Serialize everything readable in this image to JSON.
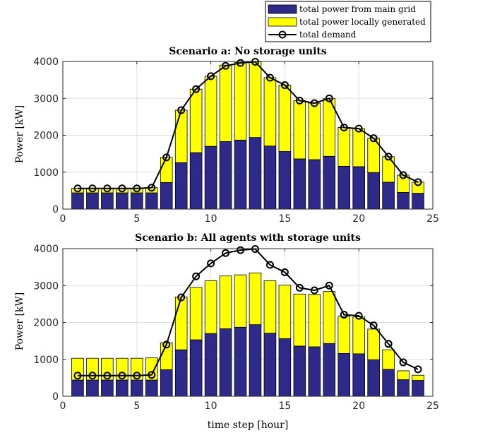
{
  "legend": {
    "items": [
      {
        "label": "total power from main grid",
        "color": "#2e2a8a",
        "kind": "patch"
      },
      {
        "label": "total power locally generated",
        "color": "#ffff00",
        "kind": "patch"
      },
      {
        "label": "total demand",
        "color": "#000000",
        "kind": "line-marker"
      }
    ]
  },
  "colors": {
    "grid_power": "#2e2a8a",
    "local_power": "#ffff00",
    "demand": "#000000"
  },
  "chart_data": [
    {
      "type": "bar",
      "subtype": "stacked-bar-with-line",
      "title": "Scenario a: No storage units",
      "xlabel": "",
      "ylabel": "Power [kW]",
      "xlim": [
        0,
        25
      ],
      "ylim": [
        0,
        4000
      ],
      "xticks": [
        0,
        5,
        10,
        15,
        20,
        25
      ],
      "yticks": [
        0,
        1000,
        2000,
        3000,
        4000
      ],
      "grid": true,
      "x": [
        1,
        2,
        3,
        4,
        5,
        6,
        7,
        8,
        9,
        10,
        11,
        12,
        13,
        14,
        15,
        16,
        17,
        18,
        19,
        20,
        21,
        22,
        23,
        24
      ],
      "series": [
        {
          "name": "total power from main grid",
          "values": [
            440,
            440,
            440,
            440,
            440,
            440,
            720,
            1260,
            1530,
            1700,
            1830,
            1870,
            1940,
            1710,
            1560,
            1360,
            1340,
            1430,
            1160,
            1150,
            990,
            730,
            450,
            430
          ]
        },
        {
          "name": "total power locally generated",
          "values": [
            120,
            120,
            120,
            120,
            120,
            140,
            680,
            1420,
            1720,
            1900,
            2070,
            2100,
            2050,
            1850,
            1800,
            1580,
            1530,
            1570,
            1050,
            1030,
            930,
            690,
            470,
            300
          ]
        },
        {
          "name": "total demand",
          "values": [
            560,
            560,
            560,
            560,
            560,
            580,
            1400,
            2680,
            3250,
            3600,
            3880,
            3960,
            3990,
            3560,
            3360,
            2940,
            2870,
            3000,
            2210,
            2180,
            1920,
            1420,
            920,
            730
          ]
        }
      ]
    },
    {
      "type": "bar",
      "subtype": "stacked-bar-with-line",
      "title": "Scenario b: All agents with storage units",
      "xlabel": "time step [hour]",
      "ylabel": "Power [kW]",
      "xlim": [
        0,
        25
      ],
      "ylim": [
        0,
        4000
      ],
      "xticks": [
        0,
        5,
        10,
        15,
        20,
        25
      ],
      "yticks": [
        0,
        1000,
        2000,
        3000,
        4000
      ],
      "grid": true,
      "x": [
        1,
        2,
        3,
        4,
        5,
        6,
        7,
        8,
        9,
        10,
        11,
        12,
        13,
        14,
        15,
        16,
        17,
        18,
        19,
        20,
        21,
        22,
        23,
        24
      ],
      "series": [
        {
          "name": "total power from main grid",
          "values": [
            440,
            440,
            440,
            440,
            440,
            440,
            720,
            1260,
            1530,
            1700,
            1830,
            1870,
            1940,
            1710,
            1560,
            1360,
            1340,
            1430,
            1160,
            1150,
            990,
            730,
            450,
            430
          ]
        },
        {
          "name": "total power locally generated",
          "values": [
            590,
            590,
            590,
            590,
            590,
            600,
            730,
            1430,
            1420,
            1430,
            1430,
            1420,
            1400,
            1420,
            1450,
            1410,
            1420,
            1410,
            1010,
            1000,
            830,
            530,
            240,
            140
          ]
        },
        {
          "name": "total demand",
          "values": [
            560,
            560,
            560,
            560,
            560,
            580,
            1400,
            2680,
            3250,
            3600,
            3880,
            3960,
            3990,
            3560,
            3360,
            2940,
            2870,
            3000,
            2210,
            2180,
            1920,
            1420,
            920,
            730
          ]
        }
      ]
    }
  ]
}
